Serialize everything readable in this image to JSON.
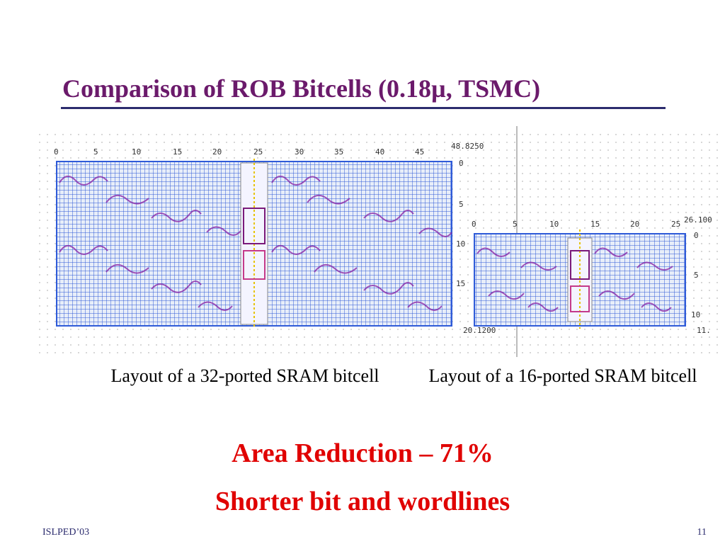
{
  "slide": {
    "title": "Comparison of ROB Bitcells (0.18µ, TSMC)",
    "captions": {
      "left": "Layout of a 32-ported SRAM bitcell",
      "right": "Layout of a 16-ported SRAM bitcell"
    },
    "highlights": [
      "Area Reduction – 71%",
      "Shorter bit and wordlines"
    ],
    "footer": {
      "conference": "ISLPED’03",
      "page": "11"
    },
    "colors": {
      "title": "#6b1a6b",
      "highlight": "#e00000",
      "rule": "#2c2c6e"
    }
  },
  "layout_left": {
    "top_ruler": [
      "0",
      "5",
      "10",
      "15",
      "20",
      "25",
      "30",
      "35",
      "40",
      "45"
    ],
    "width_label": "48.8250",
    "side_ruler": [
      "0",
      "5",
      "10",
      "15"
    ],
    "height_label": "20.1200"
  },
  "layout_right": {
    "top_ruler": [
      "0",
      "5",
      "10",
      "15",
      "20",
      "25"
    ],
    "width_label": "26.100",
    "side_ruler": [
      "0",
      "5",
      "10"
    ],
    "height_label": "11."
  }
}
